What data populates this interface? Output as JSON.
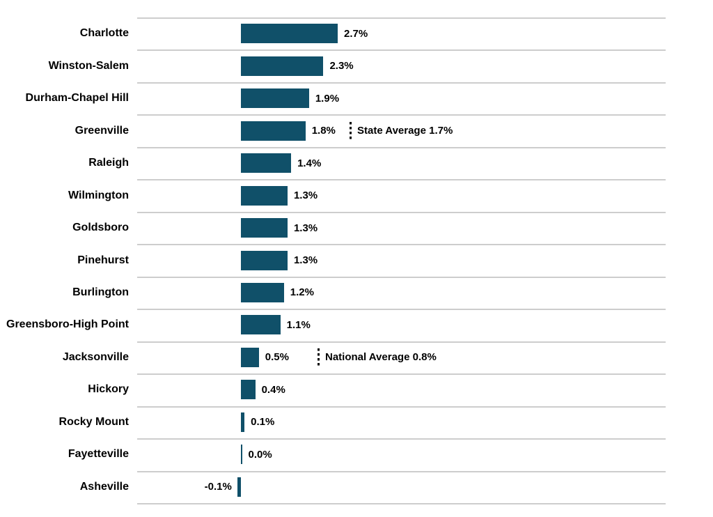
{
  "chart_data": {
    "type": "bar",
    "orientation": "horizontal",
    "title": "",
    "xlabel": "",
    "ylabel": "",
    "grid": true,
    "legend": "none",
    "bar_color": "#105069",
    "gridline_color": "#cdcdcd",
    "text_color": "#000000",
    "categories": [
      "Charlotte",
      "Winston-Salem",
      "Durham-Chapel Hill",
      "Greenville",
      "Raleigh",
      "Wilmington",
      "Goldsboro",
      "Pinehurst",
      "Burlington",
      "Greensboro-High Point",
      "Jacksonville",
      "Hickory",
      "Rocky Mount",
      "Fayetteville",
      "Asheville"
    ],
    "values": [
      2.7,
      2.3,
      1.9,
      1.8,
      1.4,
      1.3,
      1.3,
      1.3,
      1.2,
      1.1,
      0.5,
      0.4,
      0.1,
      0.0,
      -0.1
    ],
    "value_labels": [
      "2.7%",
      "2.3%",
      "1.9%",
      "1.8%",
      "1.4%",
      "1.3%",
      "1.3%",
      "1.3%",
      "1.2%",
      "1.1%",
      "0.5%",
      "0.4%",
      "0.1%",
      "0.0%",
      "-0.1%"
    ],
    "annotations": [
      {
        "row_index": 3,
        "label": "State Average 1.7%",
        "value": 1.7
      },
      {
        "row_index": 10,
        "label": "National Average 0.8%",
        "value": 0.8
      }
    ]
  }
}
